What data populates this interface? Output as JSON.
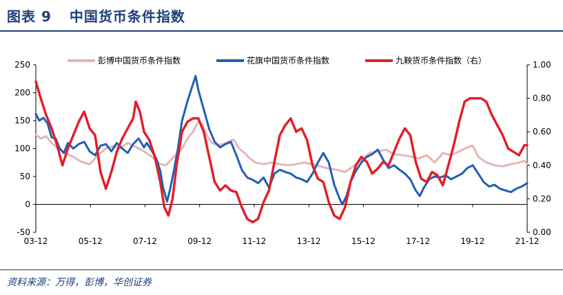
{
  "figure": {
    "title_number": "图表 9",
    "title_text": "中国货币条件指数",
    "source": "资料来源：万得，彭博，华创证券"
  },
  "chart_data": {
    "type": "line",
    "x_tick_labels": [
      "03-12",
      "05-12",
      "07-12",
      "09-12",
      "11-12",
      "13-12",
      "15-12",
      "17-12",
      "19-12",
      "21-12"
    ],
    "x_range": [
      2003.92,
      2022.0
    ],
    "y_left_range": [
      -50,
      250
    ],
    "y_left_ticks": [
      -50,
      0,
      50,
      100,
      150,
      200,
      250
    ],
    "y_right_range": [
      0.0,
      1.0
    ],
    "y_right_ticks": [
      "0.00",
      "0.20",
      "0.40",
      "0.60",
      "0.80",
      "1.00"
    ],
    "colors": {
      "pengbo": "#e8b4b4",
      "huaqi": "#1f5fb4",
      "jiuyang": "#e0202a"
    },
    "series": [
      {
        "name": "彭博中国货币条件指数",
        "axis": "left",
        "key": "pengbo",
        "points": [
          [
            2003.92,
            125
          ],
          [
            2004.1,
            118
          ],
          [
            2004.3,
            122
          ],
          [
            2004.5,
            110
          ],
          [
            2004.7,
            102
          ],
          [
            2005.0,
            92
          ],
          [
            2005.3,
            85
          ],
          [
            2005.6,
            76
          ],
          [
            2005.9,
            72
          ],
          [
            2006.2,
            88
          ],
          [
            2006.5,
            100
          ],
          [
            2006.8,
            105
          ],
          [
            2007.0,
            100
          ],
          [
            2007.3,
            110
          ],
          [
            2007.6,
            103
          ],
          [
            2007.9,
            95
          ],
          [
            2008.2,
            85
          ],
          [
            2008.5,
            72
          ],
          [
            2008.7,
            70
          ],
          [
            2008.9,
            80
          ],
          [
            2009.1,
            90
          ],
          [
            2009.3,
            100
          ],
          [
            2009.5,
            118
          ],
          [
            2009.7,
            130
          ],
          [
            2009.9,
            148
          ],
          [
            2010.05,
            142
          ],
          [
            2010.2,
            125
          ],
          [
            2010.4,
            110
          ],
          [
            2010.6,
            106
          ],
          [
            2010.8,
            108
          ],
          [
            2011.0,
            112
          ],
          [
            2011.2,
            116
          ],
          [
            2011.4,
            100
          ],
          [
            2011.6,
            92
          ],
          [
            2011.8,
            82
          ],
          [
            2012.0,
            75
          ],
          [
            2012.3,
            72
          ],
          [
            2012.6,
            75
          ],
          [
            2012.9,
            72
          ],
          [
            2013.2,
            70
          ],
          [
            2013.5,
            72
          ],
          [
            2013.8,
            75
          ],
          [
            2014.1,
            72
          ],
          [
            2014.4,
            68
          ],
          [
            2014.7,
            64
          ],
          [
            2015.0,
            62
          ],
          [
            2015.3,
            58
          ],
          [
            2015.6,
            68
          ],
          [
            2015.9,
            80
          ],
          [
            2016.2,
            92
          ],
          [
            2016.5,
            95
          ],
          [
            2016.8,
            98
          ],
          [
            2017.1,
            90
          ],
          [
            2017.4,
            88
          ],
          [
            2017.7,
            86
          ],
          [
            2018.0,
            82
          ],
          [
            2018.3,
            88
          ],
          [
            2018.6,
            75
          ],
          [
            2018.9,
            92
          ],
          [
            2019.2,
            88
          ],
          [
            2019.5,
            95
          ],
          [
            2019.8,
            102
          ],
          [
            2020.0,
            105
          ],
          [
            2020.2,
            85
          ],
          [
            2020.5,
            75
          ],
          [
            2020.8,
            70
          ],
          [
            2021.1,
            68
          ],
          [
            2021.4,
            72
          ],
          [
            2021.7,
            75
          ],
          [
            2021.9,
            78
          ],
          [
            2022.0,
            72
          ]
        ]
      },
      {
        "name": "花旗中国货币条件指数",
        "axis": "left",
        "key": "huaqi",
        "points": [
          [
            2003.92,
            162
          ],
          [
            2004.05,
            150
          ],
          [
            2004.2,
            155
          ],
          [
            2004.35,
            145
          ],
          [
            2004.5,
            120
          ],
          [
            2004.65,
            118
          ],
          [
            2004.8,
            100
          ],
          [
            2004.95,
            92
          ],
          [
            2005.1,
            110
          ],
          [
            2005.3,
            100
          ],
          [
            2005.5,
            108
          ],
          [
            2005.7,
            112
          ],
          [
            2005.9,
            95
          ],
          [
            2006.1,
            88
          ],
          [
            2006.3,
            105
          ],
          [
            2006.5,
            108
          ],
          [
            2006.7,
            95
          ],
          [
            2006.9,
            110
          ],
          [
            2007.1,
            100
          ],
          [
            2007.3,
            92
          ],
          [
            2007.5,
            108
          ],
          [
            2007.7,
            118
          ],
          [
            2007.9,
            102
          ],
          [
            2008.0,
            110
          ],
          [
            2008.2,
            95
          ],
          [
            2008.35,
            82
          ],
          [
            2008.5,
            60
          ],
          [
            2008.6,
            30
          ],
          [
            2008.75,
            5
          ],
          [
            2008.85,
            25
          ],
          [
            2009.0,
            60
          ],
          [
            2009.15,
            100
          ],
          [
            2009.3,
            150
          ],
          [
            2009.5,
            185
          ],
          [
            2009.7,
            215
          ],
          [
            2009.8,
            230
          ],
          [
            2009.9,
            205
          ],
          [
            2010.1,
            170
          ],
          [
            2010.3,
            135
          ],
          [
            2010.5,
            112
          ],
          [
            2010.7,
            102
          ],
          [
            2010.9,
            108
          ],
          [
            2011.1,
            112
          ],
          [
            2011.3,
            88
          ],
          [
            2011.5,
            62
          ],
          [
            2011.7,
            48
          ],
          [
            2011.9,
            44
          ],
          [
            2012.1,
            38
          ],
          [
            2012.3,
            48
          ],
          [
            2012.5,
            30
          ],
          [
            2012.7,
            55
          ],
          [
            2012.9,
            62
          ],
          [
            2013.1,
            58
          ],
          [
            2013.3,
            55
          ],
          [
            2013.5,
            48
          ],
          [
            2013.7,
            45
          ],
          [
            2013.9,
            40
          ],
          [
            2014.1,
            55
          ],
          [
            2014.3,
            75
          ],
          [
            2014.5,
            92
          ],
          [
            2014.7,
            75
          ],
          [
            2014.9,
            35
          ],
          [
            2015.1,
            10
          ],
          [
            2015.2,
            0
          ],
          [
            2015.35,
            15
          ],
          [
            2015.5,
            40
          ],
          [
            2015.7,
            60
          ],
          [
            2015.9,
            75
          ],
          [
            2016.1,
            85
          ],
          [
            2016.3,
            90
          ],
          [
            2016.5,
            98
          ],
          [
            2016.7,
            80
          ],
          [
            2016.9,
            65
          ],
          [
            2017.1,
            70
          ],
          [
            2017.3,
            62
          ],
          [
            2017.5,
            55
          ],
          [
            2017.7,
            45
          ],
          [
            2017.9,
            25
          ],
          [
            2018.05,
            15
          ],
          [
            2018.2,
            30
          ],
          [
            2018.4,
            45
          ],
          [
            2018.6,
            50
          ],
          [
            2018.8,
            48
          ],
          [
            2019.0,
            52
          ],
          [
            2019.2,
            45
          ],
          [
            2019.4,
            50
          ],
          [
            2019.6,
            55
          ],
          [
            2019.8,
            65
          ],
          [
            2020.0,
            70
          ],
          [
            2020.2,
            55
          ],
          [
            2020.4,
            40
          ],
          [
            2020.6,
            32
          ],
          [
            2020.8,
            35
          ],
          [
            2021.0,
            28
          ],
          [
            2021.2,
            25
          ],
          [
            2021.4,
            22
          ],
          [
            2021.6,
            28
          ],
          [
            2021.8,
            32
          ],
          [
            2022.0,
            38
          ]
        ]
      },
      {
        "name": "九鞅货币条件指数（右）",
        "axis": "right",
        "key": "jiuyang",
        "points": [
          [
            2003.92,
            0.9
          ],
          [
            2004.1,
            0.8
          ],
          [
            2004.3,
            0.7
          ],
          [
            2004.5,
            0.62
          ],
          [
            2004.7,
            0.52
          ],
          [
            2004.9,
            0.4
          ],
          [
            2005.1,
            0.5
          ],
          [
            2005.3,
            0.58
          ],
          [
            2005.5,
            0.66
          ],
          [
            2005.7,
            0.72
          ],
          [
            2005.9,
            0.62
          ],
          [
            2006.1,
            0.58
          ],
          [
            2006.3,
            0.36
          ],
          [
            2006.5,
            0.26
          ],
          [
            2006.7,
            0.36
          ],
          [
            2006.9,
            0.48
          ],
          [
            2007.1,
            0.56
          ],
          [
            2007.3,
            0.62
          ],
          [
            2007.5,
            0.68
          ],
          [
            2007.6,
            0.78
          ],
          [
            2007.75,
            0.72
          ],
          [
            2007.9,
            0.6
          ],
          [
            2008.1,
            0.55
          ],
          [
            2008.3,
            0.45
          ],
          [
            2008.5,
            0.3
          ],
          [
            2008.65,
            0.15
          ],
          [
            2008.8,
            0.1
          ],
          [
            2008.95,
            0.2
          ],
          [
            2009.1,
            0.4
          ],
          [
            2009.3,
            0.6
          ],
          [
            2009.5,
            0.66
          ],
          [
            2009.7,
            0.68
          ],
          [
            2009.9,
            0.68
          ],
          [
            2010.1,
            0.6
          ],
          [
            2010.3,
            0.45
          ],
          [
            2010.5,
            0.3
          ],
          [
            2010.7,
            0.25
          ],
          [
            2010.9,
            0.28
          ],
          [
            2011.1,
            0.25
          ],
          [
            2011.3,
            0.24
          ],
          [
            2011.5,
            0.15
          ],
          [
            2011.7,
            0.08
          ],
          [
            2011.9,
            0.06
          ],
          [
            2012.1,
            0.08
          ],
          [
            2012.3,
            0.18
          ],
          [
            2012.5,
            0.25
          ],
          [
            2012.7,
            0.42
          ],
          [
            2012.9,
            0.58
          ],
          [
            2013.1,
            0.64
          ],
          [
            2013.3,
            0.68
          ],
          [
            2013.5,
            0.6
          ],
          [
            2013.7,
            0.62
          ],
          [
            2013.9,
            0.55
          ],
          [
            2014.1,
            0.4
          ],
          [
            2014.3,
            0.32
          ],
          [
            2014.5,
            0.3
          ],
          [
            2014.7,
            0.18
          ],
          [
            2014.9,
            0.1
          ],
          [
            2015.1,
            0.08
          ],
          [
            2015.3,
            0.15
          ],
          [
            2015.5,
            0.3
          ],
          [
            2015.7,
            0.4
          ],
          [
            2015.9,
            0.45
          ],
          [
            2016.1,
            0.42
          ],
          [
            2016.3,
            0.35
          ],
          [
            2016.5,
            0.38
          ],
          [
            2016.7,
            0.42
          ],
          [
            2016.9,
            0.4
          ],
          [
            2017.1,
            0.48
          ],
          [
            2017.3,
            0.56
          ],
          [
            2017.5,
            0.62
          ],
          [
            2017.7,
            0.58
          ],
          [
            2017.9,
            0.42
          ],
          [
            2018.1,
            0.32
          ],
          [
            2018.3,
            0.3
          ],
          [
            2018.5,
            0.36
          ],
          [
            2018.7,
            0.34
          ],
          [
            2018.9,
            0.28
          ],
          [
            2019.1,
            0.4
          ],
          [
            2019.3,
            0.52
          ],
          [
            2019.5,
            0.66
          ],
          [
            2019.7,
            0.78
          ],
          [
            2019.9,
            0.8
          ],
          [
            2020.1,
            0.8
          ],
          [
            2020.3,
            0.8
          ],
          [
            2020.5,
            0.78
          ],
          [
            2020.7,
            0.7
          ],
          [
            2020.9,
            0.64
          ],
          [
            2021.1,
            0.58
          ],
          [
            2021.3,
            0.5
          ],
          [
            2021.5,
            0.48
          ],
          [
            2021.7,
            0.46
          ],
          [
            2021.9,
            0.52
          ],
          [
            2022.0,
            0.52
          ]
        ]
      }
    ]
  }
}
